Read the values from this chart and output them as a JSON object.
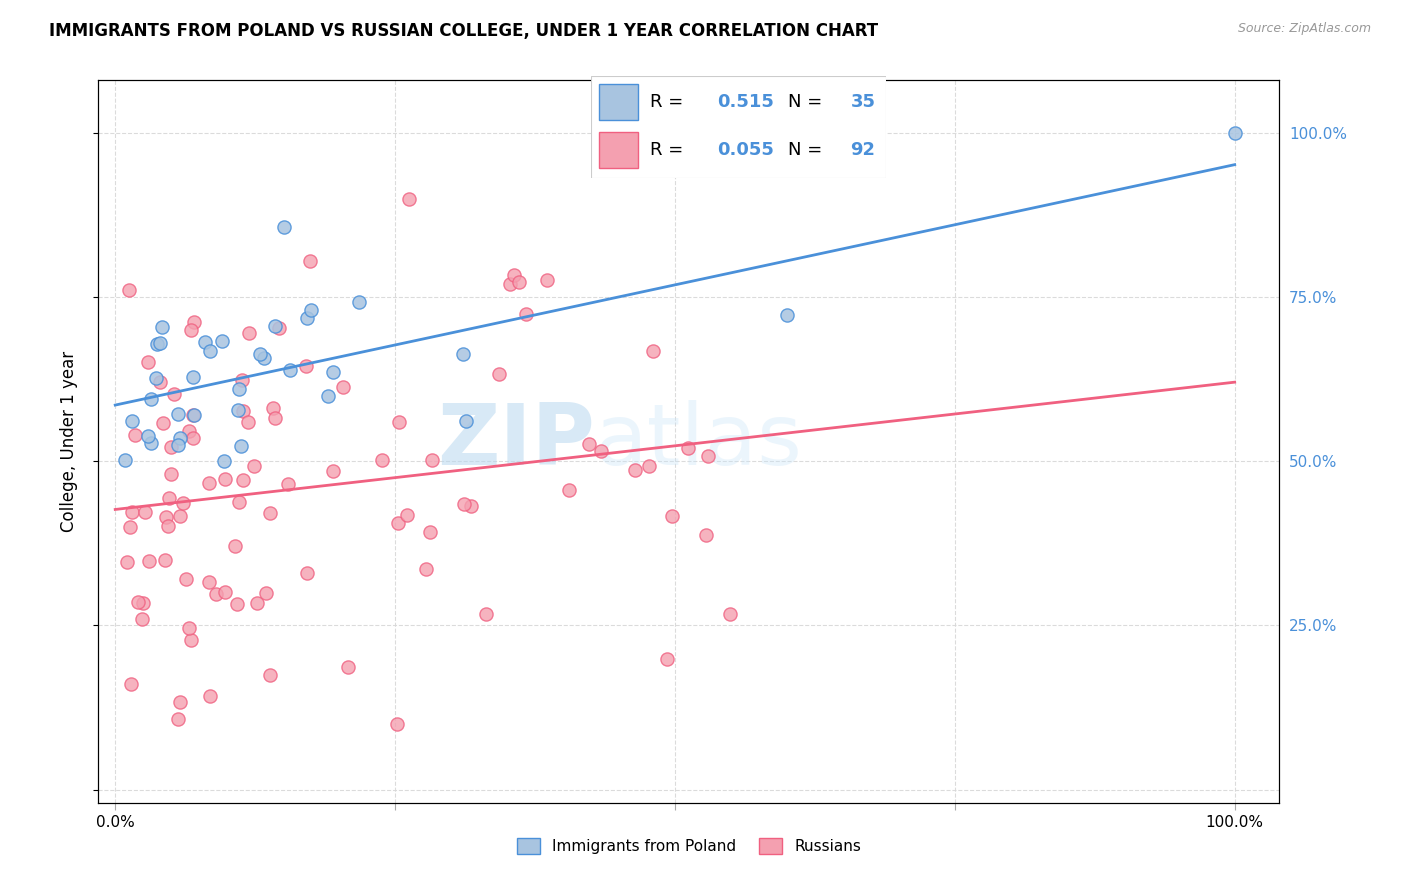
{
  "title": "IMMIGRANTS FROM POLAND VS RUSSIAN COLLEGE, UNDER 1 YEAR CORRELATION CHART",
  "source": "Source: ZipAtlas.com",
  "ylabel": "College, Under 1 year",
  "r_poland": 0.515,
  "n_poland": 35,
  "r_russian": 0.055,
  "n_russian": 92,
  "color_poland_fill": "#a8c4e0",
  "color_poland_edge": "#4a90d9",
  "color_russian_fill": "#f4a0b0",
  "color_russian_edge": "#f06080",
  "color_blue_text": "#4a90d9",
  "color_pink_text": "#f06080",
  "watermark_zip": "ZIP",
  "watermark_atlas": "atlas",
  "background_color": "#ffffff",
  "grid_color": "#d8d8d8"
}
